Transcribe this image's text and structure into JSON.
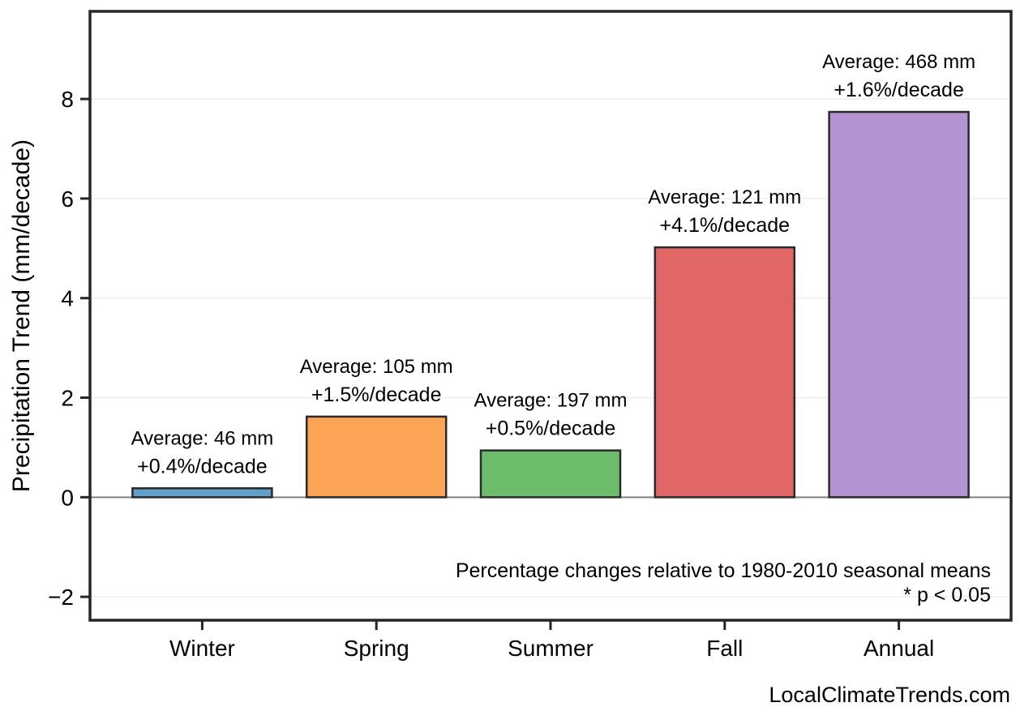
{
  "figure": {
    "watermark": "LocalClimateTrends.com"
  },
  "chart_data": {
    "type": "bar",
    "title": "",
    "xlabel": "",
    "ylabel": "Precipitation Trend (mm/decade)",
    "categories": [
      "Winter",
      "Spring",
      "Summer",
      "Fall",
      "Annual"
    ],
    "values": [
      0.18,
      1.62,
      0.94,
      5.02,
      7.74
    ],
    "bar_annotations": [
      {
        "average": "Average: 46 mm",
        "percent": "+0.4%/decade"
      },
      {
        "average": "Average: 105 mm",
        "percent": "+1.5%/decade"
      },
      {
        "average": "Average: 197 mm",
        "percent": "+0.5%/decade"
      },
      {
        "average": "Average: 121 mm",
        "percent": "+4.1%/decade"
      },
      {
        "average": "Average: 468 mm",
        "percent": "+1.6%/decade"
      }
    ],
    "bar_colors": [
      "#62A0CB",
      "#FCA456",
      "#6CBC6C",
      "#E16767",
      "#B393D1"
    ],
    "bar_edge_color": "#2a2a2a",
    "yticks": [
      -2,
      0,
      2,
      4,
      6,
      8
    ],
    "ylim": [
      -2.47,
      9.76
    ],
    "grid": true,
    "grid_color": "#eeeeee",
    "zero_line_color": "#808080",
    "axis_color": "#262626",
    "avg_label_color": "#999999",
    "pct_label_color": "#000000",
    "notes": [
      "Percentage changes relative to 1980-2010 seasonal means",
      "* p < 0.05"
    ],
    "legend_position": "none"
  }
}
